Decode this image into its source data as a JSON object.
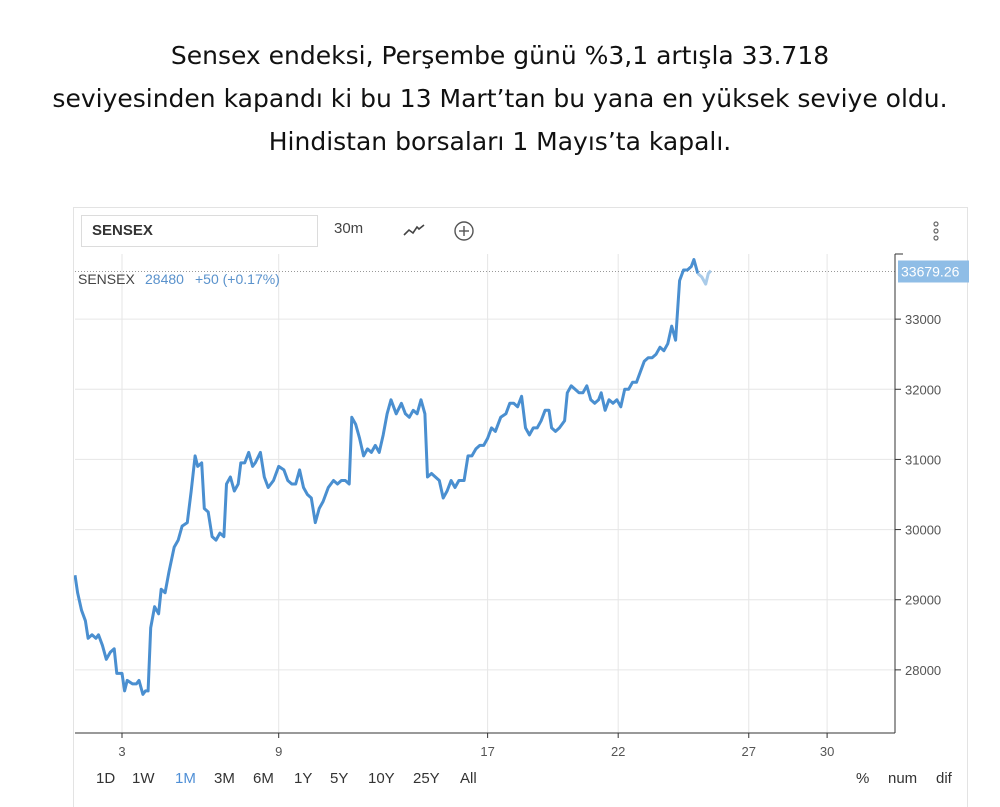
{
  "headline": {
    "line1": "Sensex endeksi, Perşembe günü %3,1 artışla 33.718",
    "line2": "seviyesinden kapandı ki bu 13 Mart’tan bu yana en yüksek seviye oldu.",
    "line3": "Hindistan borsaları 1 Mayıs’ta kapalı."
  },
  "toolbar": {
    "symbol": "SENSEX",
    "interval": "30m",
    "chart_type_icon": "line-chart-icon",
    "add_icon": "plus-circle-icon",
    "menu_icon": "vertical-dots-icon"
  },
  "legend": {
    "name": "SENSEX",
    "value": "28480",
    "change": "+50 (+0.17%)"
  },
  "last_price_label": "33679.26",
  "ranges": [
    "1D",
    "1W",
    "1M",
    "3M",
    "6M",
    "1Y",
    "5Y",
    "10Y",
    "25Y",
    "All"
  ],
  "active_range": "1M",
  "scale_options": [
    "%",
    "num",
    "dif"
  ],
  "colors": {
    "line": "#4a8fd0",
    "line_last": "#a9cbe9",
    "label_bg": "#8fbde6",
    "active_range": "#4f8fd6",
    "grid": "#e6e6e6"
  },
  "chart_data": {
    "type": "line",
    "title": "",
    "xlabel": "",
    "ylabel": "",
    "ylim": [
      27100,
      33900
    ],
    "y_ticks": [
      28000,
      29000,
      30000,
      31000,
      32000,
      33000
    ],
    "x_tick_labels": [
      {
        "label": "3",
        "x": 3
      },
      {
        "label": "9",
        "x": 9
      },
      {
        "label": "17",
        "x": 17
      },
      {
        "label": "22",
        "x": 22
      },
      {
        "label": "27",
        "x": 27
      },
      {
        "label": "30",
        "x": 30
      }
    ],
    "x_range": [
      1.2,
      32.6
    ],
    "series": [
      {
        "name": "SENSEX",
        "values": [
          [
            1.2,
            29350
          ],
          [
            1.3,
            29100
          ],
          [
            1.45,
            28850
          ],
          [
            1.6,
            28700
          ],
          [
            1.7,
            28450
          ],
          [
            1.85,
            28500
          ],
          [
            2.0,
            28450
          ],
          [
            2.1,
            28500
          ],
          [
            2.25,
            28350
          ],
          [
            2.4,
            28150
          ],
          [
            2.55,
            28250
          ],
          [
            2.7,
            28300
          ],
          [
            2.8,
            27950
          ],
          [
            3.0,
            27950
          ],
          [
            3.1,
            27700
          ],
          [
            3.2,
            27850
          ],
          [
            3.4,
            27800
          ],
          [
            3.55,
            27800
          ],
          [
            3.65,
            27850
          ],
          [
            3.8,
            27650
          ],
          [
            3.9,
            27700
          ],
          [
            4.0,
            27700
          ],
          [
            4.1,
            28600
          ],
          [
            4.25,
            28900
          ],
          [
            4.4,
            28800
          ],
          [
            4.5,
            29150
          ],
          [
            4.65,
            29100
          ],
          [
            4.8,
            29400
          ],
          [
            5.0,
            29750
          ],
          [
            5.15,
            29850
          ],
          [
            5.3,
            30050
          ],
          [
            5.5,
            30100
          ],
          [
            5.65,
            30550
          ],
          [
            5.8,
            31050
          ],
          [
            5.9,
            30900
          ],
          [
            6.05,
            30950
          ],
          [
            6.15,
            30300
          ],
          [
            6.3,
            30250
          ],
          [
            6.45,
            29900
          ],
          [
            6.6,
            29850
          ],
          [
            6.75,
            29950
          ],
          [
            6.9,
            29900
          ],
          [
            7.0,
            30650
          ],
          [
            7.15,
            30750
          ],
          [
            7.3,
            30550
          ],
          [
            7.45,
            30650
          ],
          [
            7.55,
            30950
          ],
          [
            7.7,
            30950
          ],
          [
            7.85,
            31100
          ],
          [
            8.0,
            30900
          ],
          [
            8.1,
            30950
          ],
          [
            8.3,
            31100
          ],
          [
            8.45,
            30750
          ],
          [
            8.6,
            30600
          ],
          [
            8.8,
            30700
          ],
          [
            9.0,
            30900
          ],
          [
            9.2,
            30850
          ],
          [
            9.35,
            30700
          ],
          [
            9.5,
            30650
          ],
          [
            9.65,
            30650
          ],
          [
            9.8,
            30850
          ],
          [
            9.95,
            30600
          ],
          [
            10.1,
            30500
          ],
          [
            10.25,
            30450
          ],
          [
            10.4,
            30100
          ],
          [
            10.55,
            30300
          ],
          [
            10.7,
            30400
          ],
          [
            10.9,
            30600
          ],
          [
            11.1,
            30700
          ],
          [
            11.25,
            30650
          ],
          [
            11.4,
            30700
          ],
          [
            11.55,
            30700
          ],
          [
            11.7,
            30650
          ],
          [
            11.8,
            31600
          ],
          [
            11.95,
            31500
          ],
          [
            12.1,
            31300
          ],
          [
            12.25,
            31050
          ],
          [
            12.4,
            31150
          ],
          [
            12.55,
            31100
          ],
          [
            12.7,
            31200
          ],
          [
            12.85,
            31100
          ],
          [
            13.0,
            31350
          ],
          [
            13.15,
            31650
          ],
          [
            13.3,
            31850
          ],
          [
            13.5,
            31650
          ],
          [
            13.7,
            31800
          ],
          [
            13.85,
            31650
          ],
          [
            14.0,
            31600
          ],
          [
            14.15,
            31700
          ],
          [
            14.3,
            31650
          ],
          [
            14.45,
            31850
          ],
          [
            14.6,
            31650
          ],
          [
            14.7,
            30750
          ],
          [
            14.85,
            30800
          ],
          [
            15.0,
            30750
          ],
          [
            15.15,
            30700
          ],
          [
            15.3,
            30450
          ],
          [
            15.45,
            30550
          ],
          [
            15.6,
            30700
          ],
          [
            15.75,
            30600
          ],
          [
            15.9,
            30700
          ],
          [
            16.1,
            30700
          ],
          [
            16.25,
            31050
          ],
          [
            16.4,
            31050
          ],
          [
            16.55,
            31150
          ],
          [
            16.7,
            31200
          ],
          [
            16.85,
            31200
          ],
          [
            17.0,
            31300
          ],
          [
            17.15,
            31450
          ],
          [
            17.3,
            31400
          ],
          [
            17.5,
            31600
          ],
          [
            17.7,
            31650
          ],
          [
            17.85,
            31800
          ],
          [
            18.0,
            31800
          ],
          [
            18.15,
            31750
          ],
          [
            18.3,
            31900
          ],
          [
            18.45,
            31450
          ],
          [
            18.6,
            31350
          ],
          [
            18.75,
            31450
          ],
          [
            18.9,
            31450
          ],
          [
            19.05,
            31550
          ],
          [
            19.2,
            31700
          ],
          [
            19.35,
            31700
          ],
          [
            19.45,
            31450
          ],
          [
            19.6,
            31400
          ],
          [
            19.75,
            31450
          ],
          [
            19.95,
            31550
          ],
          [
            20.05,
            31950
          ],
          [
            20.2,
            32050
          ],
          [
            20.35,
            32000
          ],
          [
            20.5,
            31950
          ],
          [
            20.65,
            31950
          ],
          [
            20.8,
            32050
          ],
          [
            20.95,
            31850
          ],
          [
            21.1,
            31800
          ],
          [
            21.25,
            31850
          ],
          [
            21.35,
            31950
          ],
          [
            21.5,
            31700
          ],
          [
            21.65,
            31850
          ],
          [
            21.8,
            31800
          ],
          [
            21.95,
            31850
          ],
          [
            22.1,
            31750
          ],
          [
            22.25,
            32000
          ],
          [
            22.4,
            32000
          ],
          [
            22.55,
            32100
          ],
          [
            22.7,
            32100
          ],
          [
            22.85,
            32250
          ],
          [
            23.0,
            32400
          ],
          [
            23.15,
            32450
          ],
          [
            23.3,
            32450
          ],
          [
            23.45,
            32500
          ],
          [
            23.6,
            32600
          ],
          [
            23.75,
            32550
          ],
          [
            23.9,
            32650
          ],
          [
            24.05,
            32900
          ],
          [
            24.2,
            32700
          ],
          [
            24.35,
            33550
          ],
          [
            24.5,
            33700
          ],
          [
            24.65,
            33700
          ],
          [
            24.8,
            33750
          ],
          [
            24.9,
            33850
          ],
          [
            25.05,
            33650
          ],
          [
            25.2,
            33600
          ],
          [
            25.35,
            33500
          ],
          [
            25.45,
            33650
          ],
          [
            25.55,
            33690
          ]
        ]
      }
    ],
    "last_value": 33679.26,
    "grid": true,
    "legend_position": "top-left"
  }
}
